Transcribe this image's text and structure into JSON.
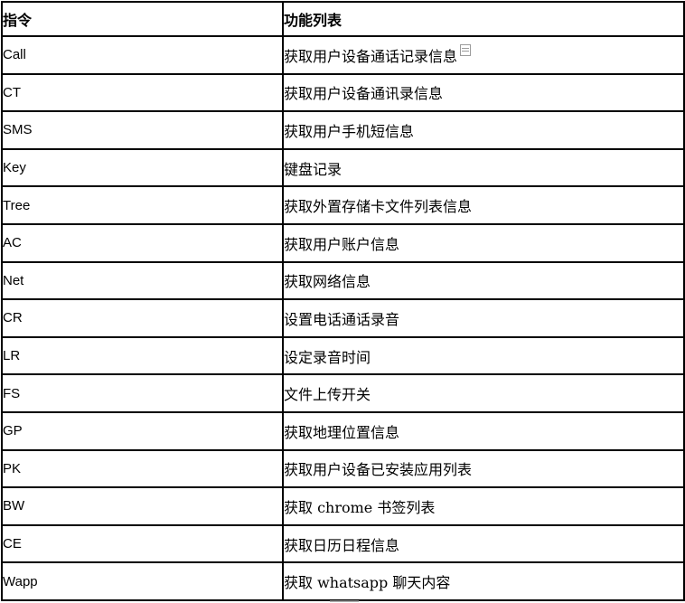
{
  "table": {
    "columns": [
      "指令",
      "功能列表"
    ],
    "rows": [
      {
        "command": "Call",
        "function": "获取用户设备通话记录信息",
        "has_mark": true
      },
      {
        "command": "CT",
        "function": "获取用户设备通讯录信息",
        "has_mark": false
      },
      {
        "command": "SMS",
        "function": "获取用户手机短信息",
        "has_mark": false
      },
      {
        "command": "Key",
        "function": "键盘记录",
        "has_mark": false
      },
      {
        "command": "Tree",
        "function": "获取外置存储卡文件列表信息",
        "has_mark": false
      },
      {
        "command": "AC",
        "function": "获取用户账户信息",
        "has_mark": false
      },
      {
        "command": "Net",
        "function": "获取网络信息",
        "has_mark": false
      },
      {
        "command": "CR",
        "function": "设置电话通话录音",
        "has_mark": false
      },
      {
        "command": "LR",
        "function": "设定录音时间",
        "has_mark": false
      },
      {
        "command": "FS",
        "function": "文件上传开关",
        "has_mark": false
      },
      {
        "command": "GP",
        "function": "获取地理位置信息",
        "has_mark": false
      },
      {
        "command": "PK",
        "function": "获取用户设备已安装应用列表",
        "has_mark": false
      },
      {
        "command": "BW",
        "function": "获取 chrome 书签列表",
        "has_mark": false
      },
      {
        "command": "CE",
        "function": "获取日历日程信息",
        "has_mark": false
      },
      {
        "command": "Wapp",
        "function": "获取 whatsapp 聊天内容",
        "has_mark": false
      }
    ]
  },
  "colors": {
    "border": "#000000",
    "text": "#1a1a1a",
    "background": "#ffffff"
  }
}
